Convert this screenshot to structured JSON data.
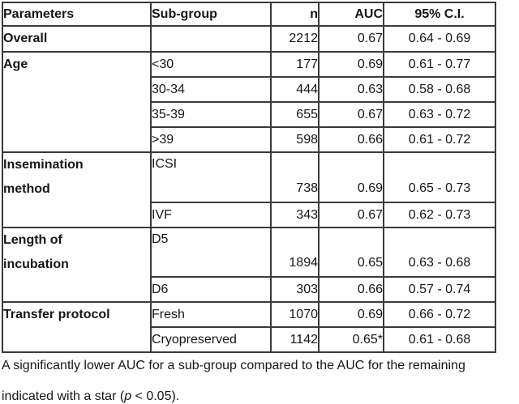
{
  "table": {
    "columns": [
      {
        "label": "Parameters"
      },
      {
        "label": "Sub-group"
      },
      {
        "label": "n"
      },
      {
        "label": "AUC"
      },
      {
        "label": "95% C.I."
      }
    ],
    "rows": [
      {
        "param": "Overall",
        "sub": "",
        "n": "2212",
        "auc": "0.67",
        "ci": "0.64 - 0.69"
      },
      {
        "param": "Age",
        "sub": "<30",
        "n": "177",
        "auc": "0.69",
        "ci": "0.61 - 0.77"
      },
      {
        "sub": "30-34",
        "n": "444",
        "auc": "0.63",
        "ci": "0.58 - 0.68"
      },
      {
        "sub": "35-39",
        "n": "655",
        "auc": "0.67",
        "ci": "0.63 - 0.72"
      },
      {
        "sub": ">39",
        "n": "598",
        "auc": "0.66",
        "ci": "0.61 - 0.72"
      },
      {
        "param": "Insemination\nmethod",
        "sub": "ICSI",
        "n": "738",
        "auc": "0.69",
        "ci": "0.65 - 0.73"
      },
      {
        "sub": "IVF",
        "n": "343",
        "auc": "0.67",
        "ci": "0.62 - 0.73"
      },
      {
        "param": "Length of\nincubation",
        "sub": "D5",
        "n": "1894",
        "auc": "0.65",
        "ci": "0.63 - 0.68"
      },
      {
        "sub": "D6",
        "n": "303",
        "auc": "0.66",
        "ci": "0.57 - 0.74"
      },
      {
        "param": "Transfer protocol",
        "sub": "Fresh",
        "n": "1070",
        "auc": "0.69",
        "ci": "0.66 - 0.72"
      },
      {
        "sub": "Cryopreserved",
        "n": "1142",
        "auc": "0.65*",
        "ci": "0.61 - 0.68"
      }
    ]
  },
  "footnote": {
    "line1": "A significantly lower AUC for a sub-group compared to the AUC for the remaining",
    "line2_before_p": "indicated with a star (",
    "p_symbol": "p",
    "line2_after_p": " < 0.05)."
  }
}
